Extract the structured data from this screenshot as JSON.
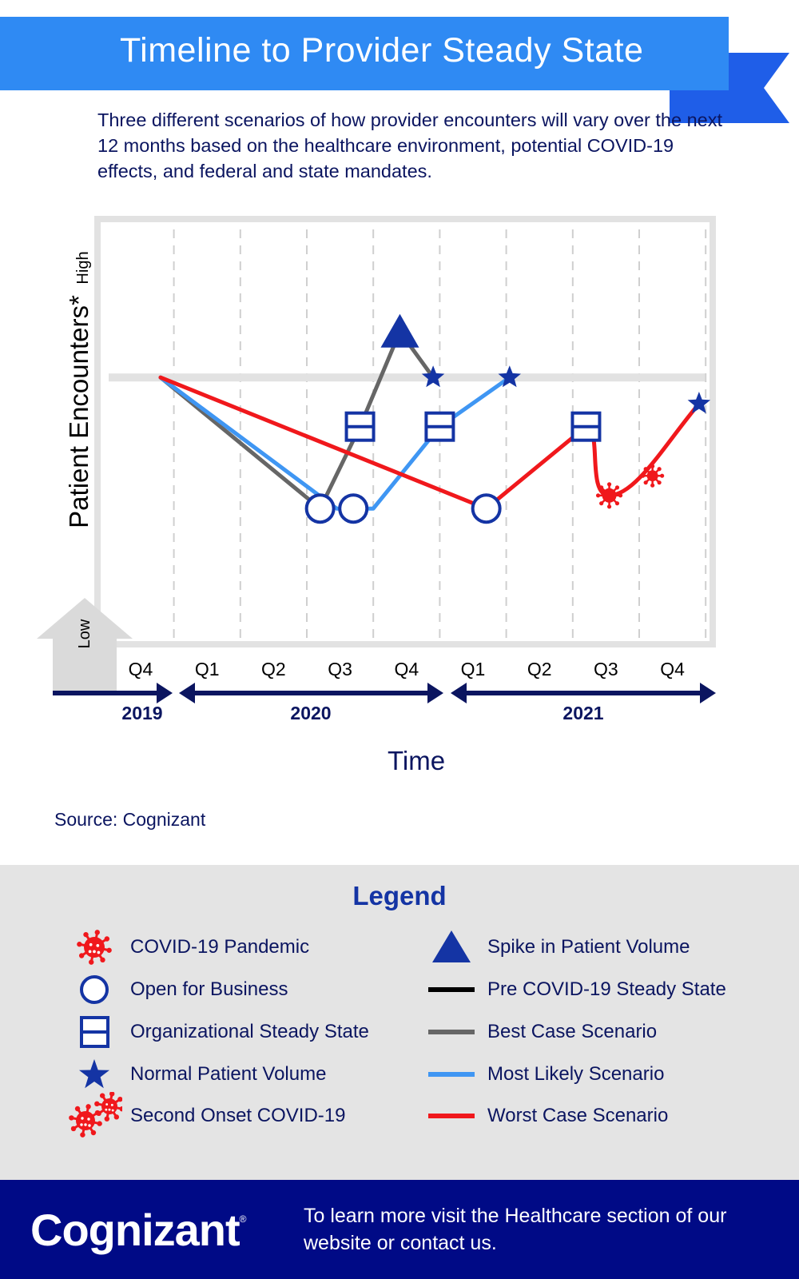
{
  "title": "Timeline to Provider Steady State",
  "subtitle": "Three different scenarios of how provider encounters will vary over the next 12 months based on the healthcare environment, potential COVID-19 effects, and federal and state mandates.",
  "source": "Source: Cognizant",
  "colors": {
    "title_bar": "#2f8af3",
    "navy": "#0b1560",
    "marker_blue": "#1434a4",
    "best_case": "#666666",
    "most_likely": "#3f96f3",
    "worst_case": "#f0181c",
    "steady_state": "#000000",
    "footer": "#000a86",
    "legend_bg": "#e4e4e4"
  },
  "chart_data": {
    "type": "line",
    "title": "",
    "xlabel": "Time",
    "ylabel": "Patient Encounters*",
    "y_levels": {
      "low": "Low",
      "high": "High"
    },
    "ylim": [
      0,
      100
    ],
    "x_ticks": [
      "Q4",
      "Q1",
      "Q2",
      "Q3",
      "Q4",
      "Q1",
      "Q2",
      "Q3",
      "Q4"
    ],
    "years": [
      {
        "label": "2019",
        "from": 0,
        "to": 0
      },
      {
        "label": "2020",
        "from": 1,
        "to": 4
      },
      {
        "label": "2021",
        "from": 5,
        "to": 8
      }
    ],
    "steady_state": {
      "name": "Pre COVID-19 Steady State",
      "y": 58
    },
    "series": [
      {
        "name": "Best Case Scenario",
        "color": "#666666",
        "points": [
          [
            0.3,
            58
          ],
          [
            2.7,
            18
          ],
          [
            3.3,
            43
          ],
          [
            3.9,
            72
          ],
          [
            4.4,
            58
          ]
        ]
      },
      {
        "name": "Most Likely Scenario",
        "color": "#3f96f3",
        "points": [
          [
            0.3,
            58
          ],
          [
            2.95,
            18
          ],
          [
            3.5,
            18
          ],
          [
            4.5,
            43
          ],
          [
            5.55,
            58
          ]
        ]
      },
      {
        "name": "Worst Case Scenario",
        "color": "#f0181c",
        "points": [
          [
            0.3,
            58
          ],
          [
            5.2,
            18
          ],
          [
            6.7,
            43
          ],
          [
            6.95,
            30
          ],
          [
            7.3,
            30
          ],
          [
            8.4,
            50
          ]
        ]
      }
    ],
    "markers": [
      {
        "type": "open-for-business",
        "x": 2.7,
        "y": 18
      },
      {
        "type": "open-for-business",
        "x": 3.2,
        "y": 18
      },
      {
        "type": "open-for-business",
        "x": 5.2,
        "y": 18
      },
      {
        "type": "organizational-steady-state",
        "x": 3.3,
        "y": 43
      },
      {
        "type": "organizational-steady-state",
        "x": 4.5,
        "y": 43
      },
      {
        "type": "organizational-steady-state",
        "x": 6.7,
        "y": 43
      },
      {
        "type": "spike-in-patient-volume",
        "x": 3.9,
        "y": 72
      },
      {
        "type": "normal-patient-volume",
        "x": 4.4,
        "y": 58
      },
      {
        "type": "normal-patient-volume",
        "x": 5.55,
        "y": 58
      },
      {
        "type": "normal-patient-volume",
        "x": 8.4,
        "y": 50
      },
      {
        "type": "second-onset-covid",
        "x": 7.05,
        "y": 22
      },
      {
        "type": "second-onset-covid",
        "x": 7.7,
        "y": 28
      }
    ]
  },
  "legend": {
    "title": "Legend",
    "items": [
      {
        "label": "COVID-19 Pandemic",
        "icon": "virus-icon"
      },
      {
        "label": "Open for Business",
        "icon": "open-circle-icon"
      },
      {
        "label": "Organizational Steady State",
        "icon": "split-square-icon"
      },
      {
        "label": "Normal Patient Volume",
        "icon": "star-icon"
      },
      {
        "label": "Second Onset COVID-19",
        "icon": "double-virus-icon"
      },
      {
        "label": "Spike in Patient Volume",
        "icon": "triangle-icon"
      },
      {
        "label": "Pre COVID-19 Steady State",
        "icon": "black-line-icon"
      },
      {
        "label": "Best Case Scenario",
        "icon": "gray-line-icon"
      },
      {
        "label": "Most Likely Scenario",
        "icon": "blue-line-icon"
      },
      {
        "label": "Worst Case Scenario",
        "icon": "red-line-icon"
      }
    ]
  },
  "footer": {
    "logo": "Cognizant",
    "logo_mark": "®",
    "text": "To learn more visit the Healthcare section of our website or contact us."
  }
}
